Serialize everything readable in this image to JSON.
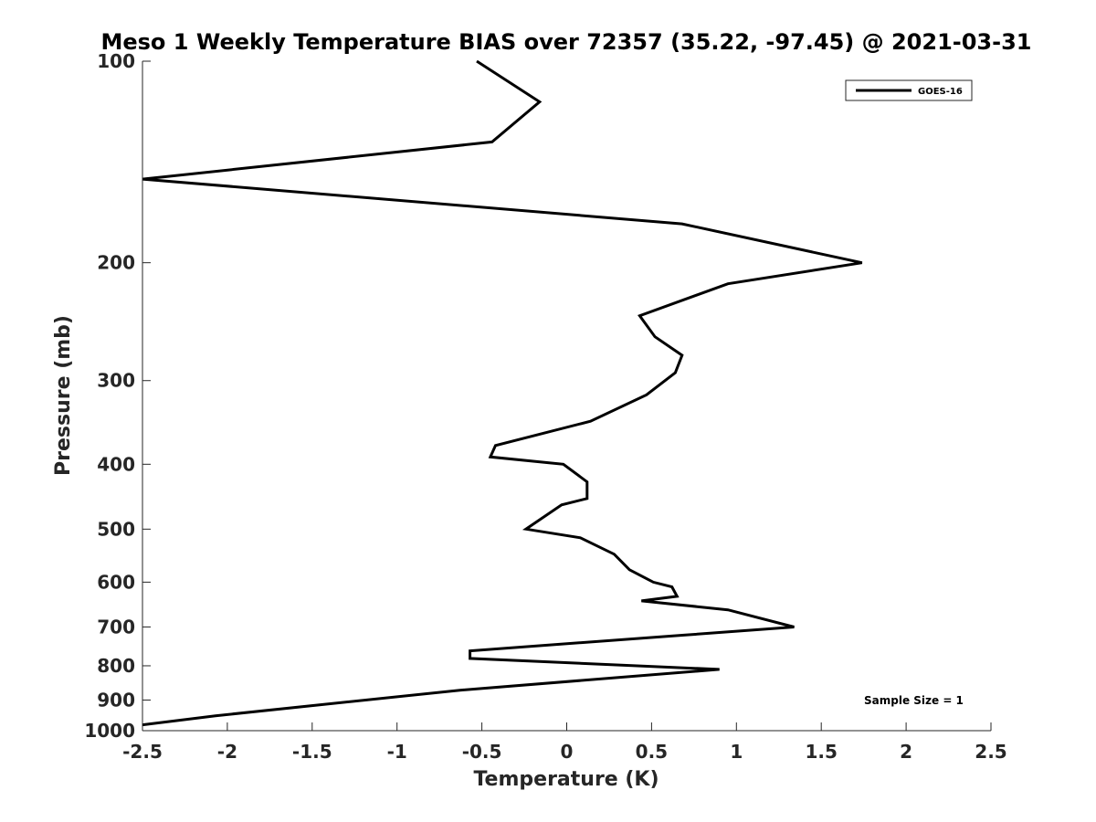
{
  "chart_data": {
    "type": "line",
    "title": "Meso 1 Weekly Temperature BIAS over 72357 (35.22, -97.45) @ 2021-03-31",
    "xlabel": "Temperature (K)",
    "ylabel": "Pressure (mb)",
    "xlim": [
      -2.5,
      2.5
    ],
    "ylim": [
      100,
      1000
    ],
    "y_scale": "log",
    "y_reversed": true,
    "grid": false,
    "legend_position": "top-right",
    "x_ticks": [
      -2.5,
      -2,
      -1.5,
      -1,
      -0.5,
      0,
      0.5,
      1,
      1.5,
      2,
      2.5
    ],
    "x_tick_labels": [
      "-2.5",
      "-2",
      "-1.5",
      "-1",
      "-0.5",
      "0",
      "0.5",
      "1",
      "1.5",
      "2",
      "2.5"
    ],
    "y_ticks": [
      100,
      200,
      300,
      400,
      500,
      600,
      700,
      800,
      900,
      1000
    ],
    "y_tick_labels": [
      "100",
      "200",
      "300",
      "400",
      "500",
      "600",
      "700",
      "800",
      "900",
      "1000"
    ],
    "series": [
      {
        "name": "GOES-16",
        "color": "#000000",
        "x": [
          -0.53,
          -0.16,
          -0.44,
          -2.5,
          0.68,
          1.74,
          0.95,
          0.43,
          0.52,
          0.68,
          0.64,
          0.47,
          0.14,
          -0.42,
          -0.45,
          -0.02,
          0.12,
          0.12,
          -0.03,
          -0.24,
          0.08,
          0.28,
          0.37,
          0.51,
          0.62,
          0.65,
          0.44,
          0.95,
          1.34,
          0.69,
          -0.57,
          -0.57,
          0.9,
          -0.63,
          -2.07,
          -2.5
        ],
        "y": [
          100,
          115,
          132,
          150,
          175,
          200,
          215,
          240,
          258,
          275,
          292,
          315,
          345,
          375,
          390,
          400,
          425,
          450,
          460,
          500,
          515,
          545,
          575,
          600,
          610,
          630,
          640,
          660,
          700,
          720,
          760,
          780,
          810,
          870,
          950,
          980
        ]
      }
    ],
    "annotations": [
      "Sample Size = 1"
    ]
  }
}
